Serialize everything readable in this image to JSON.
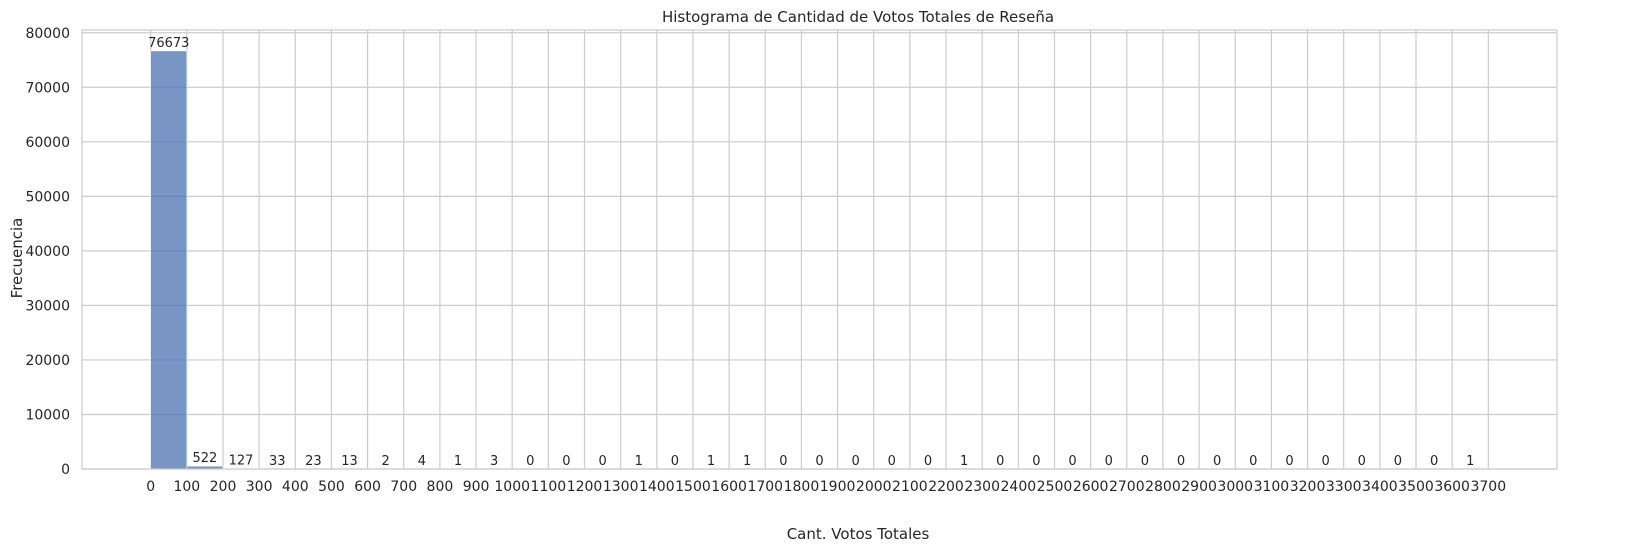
{
  "chart_data": {
    "type": "bar",
    "title": "Histograma de Cantidad de Votos Totales de Reseña",
    "xlabel": "Cant. Votos Totales",
    "ylabel": "Frecuencia",
    "bin_width": 100,
    "bin_edges": [
      0,
      100,
      200,
      300,
      400,
      500,
      600,
      700,
      800,
      900,
      1000,
      1100,
      1200,
      1300,
      1400,
      1500,
      1600,
      1700,
      1800,
      1900,
      2000,
      2100,
      2200,
      2300,
      2400,
      2500,
      2600,
      2700,
      2800,
      2900,
      3000,
      3100,
      3200,
      3300,
      3400,
      3500,
      3600,
      3700
    ],
    "values": [
      76673,
      522,
      127,
      33,
      23,
      13,
      2,
      4,
      1,
      3,
      0,
      0,
      0,
      1,
      0,
      1,
      1,
      0,
      0,
      0,
      0,
      0,
      1,
      0,
      0,
      0,
      0,
      0,
      0,
      0,
      0,
      0,
      0,
      0,
      0,
      0,
      1
    ],
    "xticks": [
      "0",
      "100",
      "200",
      "300",
      "400",
      "500",
      "600",
      "700",
      "800",
      "900",
      "1000",
      "1100",
      "1200",
      "1300",
      "1400",
      "1500",
      "1600",
      "1700",
      "1800",
      "1900",
      "2000",
      "2100",
      "2200",
      "2300",
      "2400",
      "2500",
      "2600",
      "2700",
      "2800",
      "2900",
      "3000",
      "3100",
      "3200",
      "3300",
      "3400",
      "3500",
      "3600",
      "3700"
    ],
    "yticks": [
      "0",
      "10000",
      "20000",
      "30000",
      "40000",
      "50000",
      "60000",
      "70000",
      "80000"
    ],
    "xlim": [
      -190,
      3890
    ],
    "ylim": [
      0,
      80505
    ],
    "grid": true,
    "legend": "none",
    "bar_color": "#4c72b0",
    "grid_color": "#cccccc",
    "frame_color": "#cccccc"
  }
}
